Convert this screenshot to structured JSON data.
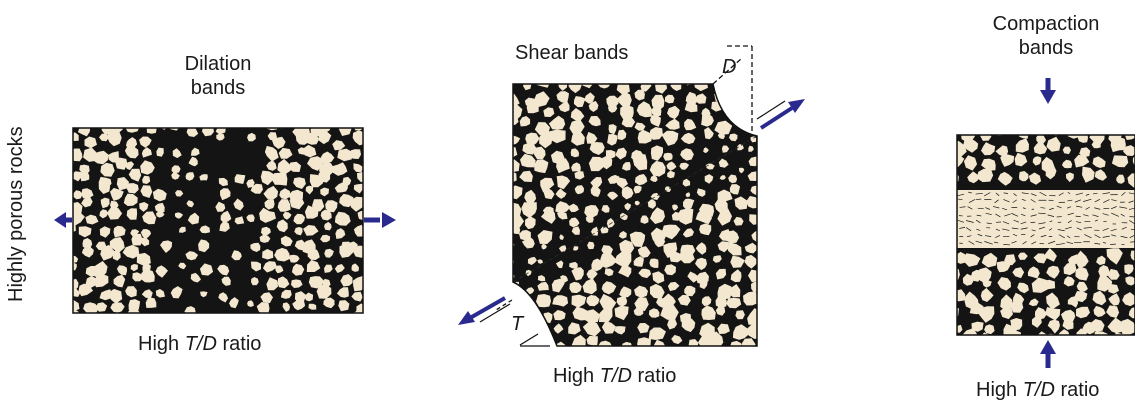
{
  "side_label": "Highly porous rocks",
  "panels": [
    {
      "id": "dilation",
      "title_lines": [
        "Dilation",
        "bands"
      ],
      "caption": {
        "prefix": "High ",
        "italic": "T/D",
        "suffix": " ratio"
      }
    },
    {
      "id": "shear",
      "title_lines": [
        "Shear bands"
      ],
      "markers": {
        "top": "D",
        "bottom": "T"
      },
      "caption": {
        "prefix": "High ",
        "italic": "T/D",
        "suffix": " ratio"
      }
    },
    {
      "id": "compaction",
      "title_lines": [
        "Compaction",
        "bands"
      ],
      "caption": {
        "prefix": "High ",
        "italic": "T/D",
        "suffix": " ratio"
      }
    }
  ],
  "colors": {
    "grain": "#f3e8cf",
    "matrix": "#141414",
    "arrow": "#2a2a8e",
    "outline": "#111111"
  }
}
